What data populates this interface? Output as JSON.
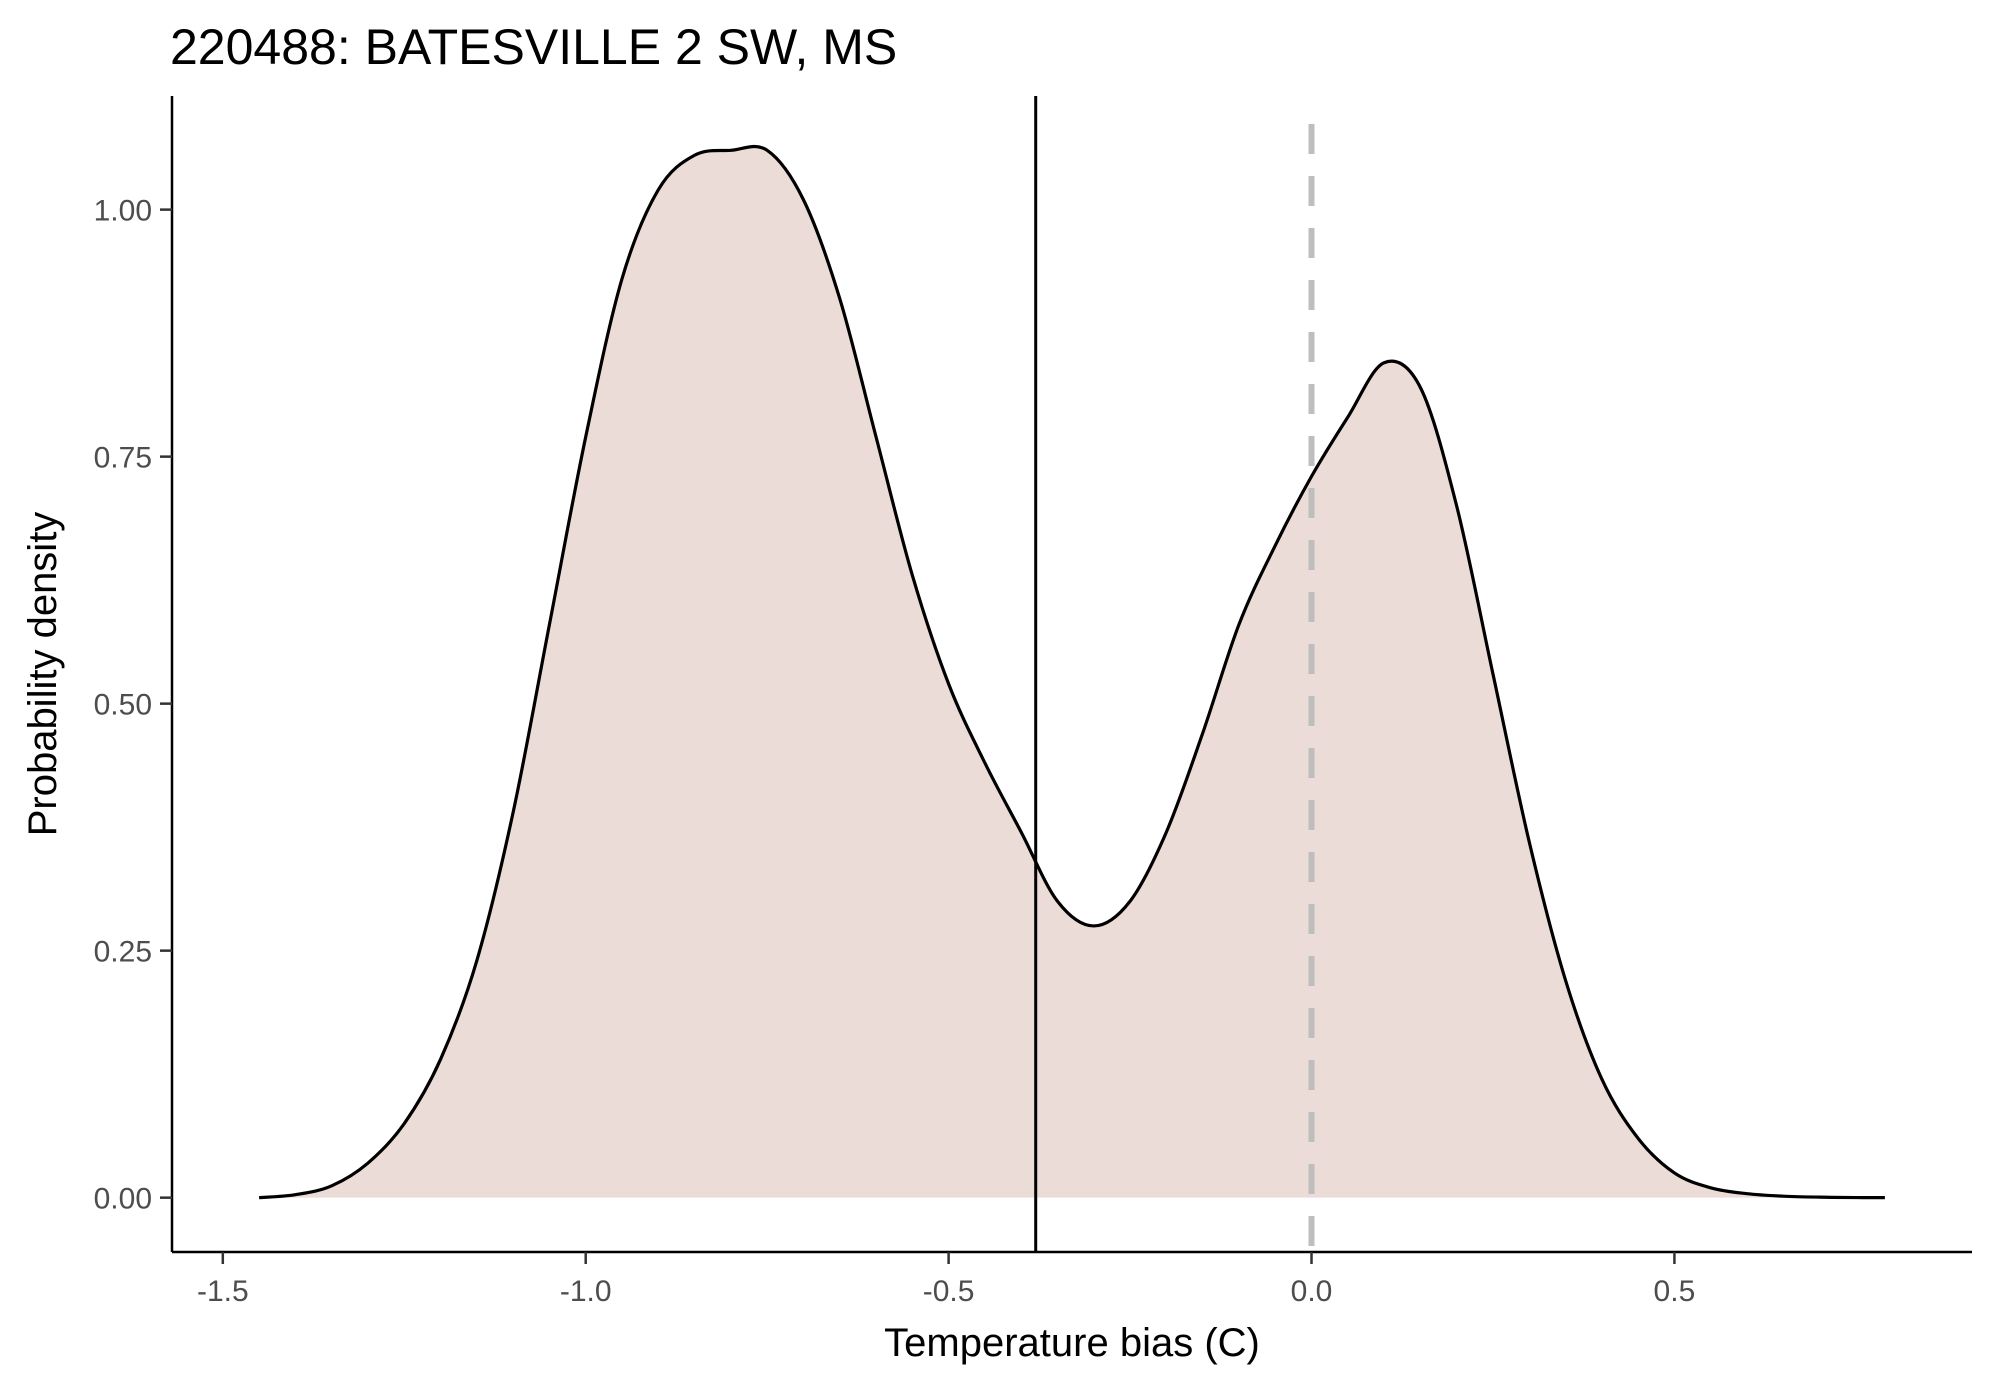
{
  "chart_data": {
    "type": "area",
    "title": "220488: BATESVILLE 2 SW, MS",
    "xlabel": "Temperature bias (C)",
    "ylabel": "Probability density",
    "xlim": [
      -1.57,
      0.91
    ],
    "ylim": [
      -0.055,
      1.115
    ],
    "xticks": [
      -1.5,
      -1.0,
      -0.5,
      0.0,
      0.5
    ],
    "xtick_labels": [
      "-1.5",
      "-1.0",
      "-0.5",
      "0.0",
      "0.5"
    ],
    "yticks": [
      0.0,
      0.25,
      0.5,
      0.75,
      1.0
    ],
    "ytick_labels": [
      "0.00",
      "0.25",
      "0.50",
      "0.75",
      "1.00"
    ],
    "grid": false,
    "legend": "none",
    "series": [
      {
        "x": [
          -1.45,
          -1.4,
          -1.35,
          -1.3,
          -1.25,
          -1.2,
          -1.15,
          -1.1,
          -1.05,
          -1.0,
          -0.95,
          -0.9,
          -0.85,
          -0.8,
          -0.75,
          -0.7,
          -0.65,
          -0.6,
          -0.55,
          -0.5,
          -0.45,
          -0.4,
          -0.35,
          -0.3,
          -0.25,
          -0.2,
          -0.15,
          -0.1,
          -0.05,
          0.0,
          0.05,
          0.1,
          0.15,
          0.2,
          0.25,
          0.3,
          0.35,
          0.4,
          0.45,
          0.5,
          0.55,
          0.6,
          0.65,
          0.7,
          0.75,
          0.79
        ],
        "y": [
          0.0,
          0.003,
          0.012,
          0.035,
          0.075,
          0.14,
          0.24,
          0.39,
          0.58,
          0.77,
          0.93,
          1.02,
          1.055,
          1.06,
          1.06,
          1.01,
          0.91,
          0.77,
          0.63,
          0.52,
          0.44,
          0.37,
          0.3,
          0.275,
          0.3,
          0.37,
          0.47,
          0.58,
          0.66,
          0.73,
          0.79,
          0.845,
          0.82,
          0.7,
          0.53,
          0.36,
          0.22,
          0.12,
          0.06,
          0.025,
          0.01,
          0.004,
          0.0015,
          0.0005,
          0.0001,
          0.0
        ]
      }
    ],
    "reference_lines": [
      {
        "x": -0.38,
        "style": "solid",
        "color": "#000000"
      },
      {
        "x": 0.0,
        "style": "dashed",
        "color": "#bebebe"
      }
    ],
    "fill_color": "#ecdcd8",
    "line_color": "#000000"
  }
}
